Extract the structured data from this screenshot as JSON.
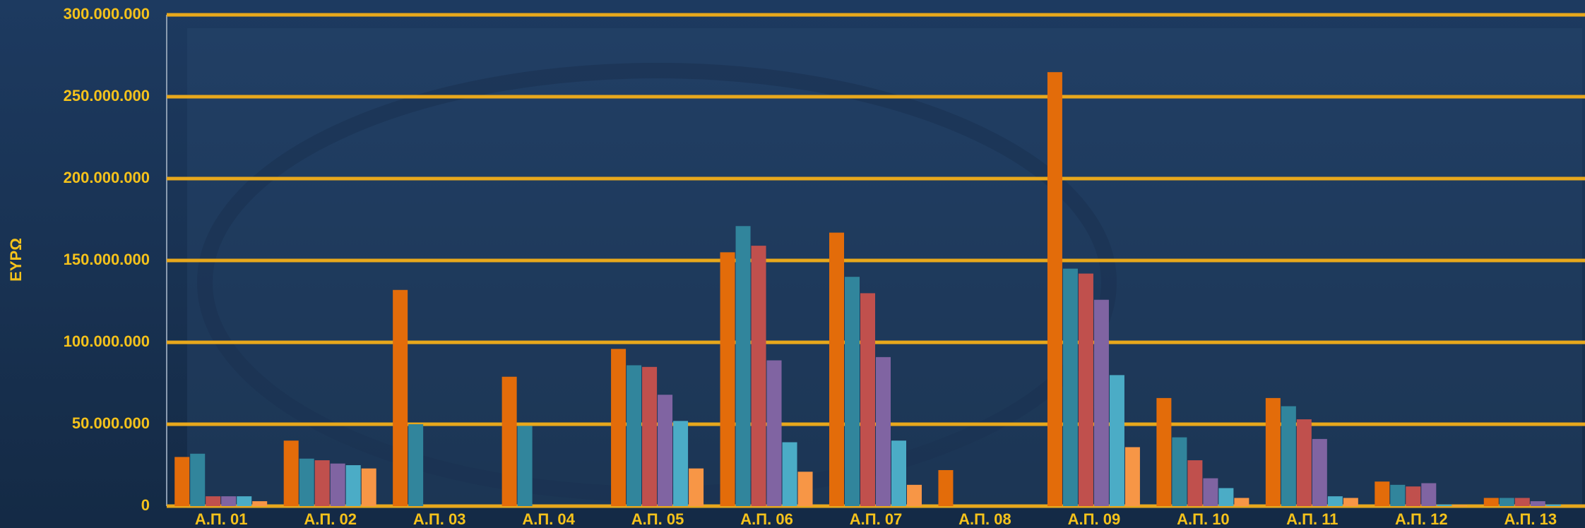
{
  "chart_data": {
    "type": "bar",
    "y_label": "ΕΥΡΩ",
    "categories": [
      "Α.Π. 01",
      "Α.Π. 02",
      "Α.Π. 03",
      "Α.Π. 04",
      "Α.Π. 05",
      "Α.Π. 06",
      "Α.Π. 07",
      "Α.Π. 08",
      "Α.Π. 09",
      "Α.Π. 10",
      "Α.Π. 11",
      "Α.Π. 12",
      "Α.Π. 13"
    ],
    "series": [
      {
        "color": "#e36c0a",
        "values": [
          30000000,
          40000000,
          132000000,
          79000000,
          96000000,
          155000000,
          167000000,
          22000000,
          265000000,
          66000000,
          66000000,
          15000000,
          5000000
        ]
      },
      {
        "color": "#31859c",
        "values": [
          32000000,
          29000000,
          50000000,
          49000000,
          86000000,
          171000000,
          140000000,
          0,
          145000000,
          42000000,
          61000000,
          13000000,
          5000000
        ]
      },
      {
        "color": "#c0504d",
        "values": [
          6000000,
          28000000,
          0,
          0,
          85000000,
          159000000,
          130000000,
          0,
          142000000,
          28000000,
          53000000,
          12000000,
          5000000
        ]
      },
      {
        "color": "#8064a2",
        "values": [
          6000000,
          26000000,
          0,
          0,
          68000000,
          89000000,
          91000000,
          0,
          126000000,
          17000000,
          41000000,
          14000000,
          3000000
        ]
      },
      {
        "color": "#4bacc6",
        "values": [
          6000000,
          25000000,
          0,
          0,
          52000000,
          39000000,
          40000000,
          0,
          80000000,
          11000000,
          6000000,
          1000000,
          1000000
        ]
      },
      {
        "color": "#f79646",
        "values": [
          3000000,
          23000000,
          0,
          0,
          23000000,
          21000000,
          13000000,
          0,
          36000000,
          5000000,
          5000000,
          500000,
          0
        ]
      }
    ],
    "ylim": [
      0,
      300000000
    ],
    "yticks": [
      0,
      {
        "value": 50000000,
        "label": "50.000.000"
      },
      {
        "value": 100000000,
        "label": "100.000.000"
      },
      {
        "value": 150000000,
        "label": "150.000.000"
      },
      {
        "value": 200000000,
        "label": "200.000.000"
      },
      {
        "value": 250000000,
        "label": "250.000.000"
      },
      {
        "value": 300000000,
        "label": "300.000.000"
      }
    ],
    "grid": true
  }
}
